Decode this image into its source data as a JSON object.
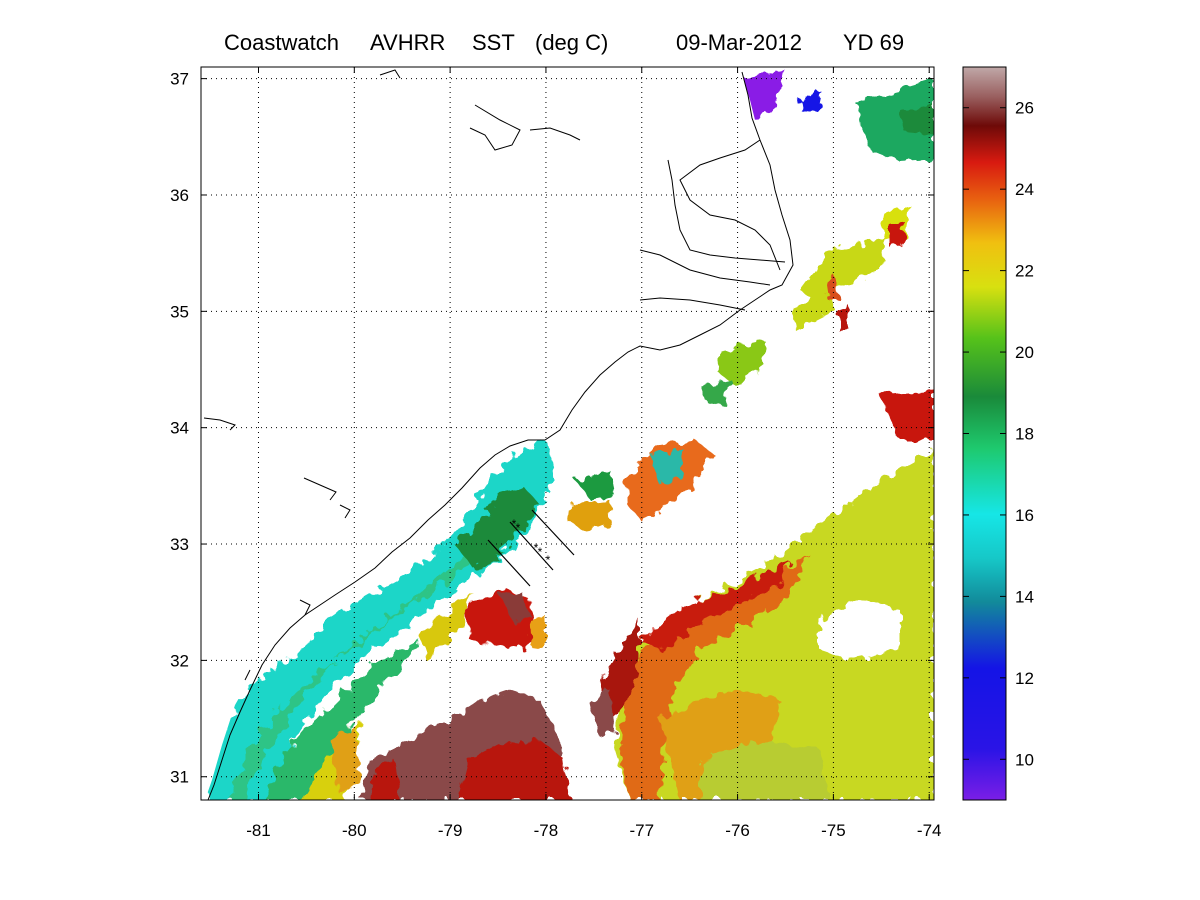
{
  "title": {
    "product": "Coastwatch",
    "sensor": "AVHRR",
    "variable": "SST",
    "units": "(deg C)",
    "date": "09-Mar-2012",
    "yearday": "YD 69"
  },
  "map": {
    "lon_range": [
      -81.6,
      -73.95
    ],
    "lat_range": [
      30.8,
      37.1
    ],
    "lon_ticks": [
      -81,
      -80,
      -79,
      -78,
      -77,
      -76,
      -75,
      -74
    ],
    "lat_ticks": [
      31,
      32,
      33,
      34,
      35,
      36,
      37
    ],
    "lon_tick_labels": [
      "-81",
      "-80",
      "-79",
      "-78",
      "-77",
      "-76",
      "-75",
      "-74"
    ],
    "lat_tick_labels": [
      "31",
      "32",
      "33",
      "34",
      "35",
      "36",
      "37"
    ],
    "grid": "dotted"
  },
  "colorbar": {
    "range": [
      9,
      27
    ],
    "ticks": [
      10,
      12,
      14,
      16,
      18,
      20,
      22,
      24,
      26
    ],
    "tick_labels": [
      "10",
      "12",
      "14",
      "16",
      "18",
      "20",
      "22",
      "24",
      "26"
    ],
    "colors": [
      "#7a1ee6",
      "#1414e6",
      "#128a9a",
      "#16d9d9",
      "#1ec96e",
      "#1a8a3a",
      "#56c21a",
      "#d8e010",
      "#e88a10",
      "#d81a10",
      "#6e0a08",
      "#b08888"
    ]
  }
}
